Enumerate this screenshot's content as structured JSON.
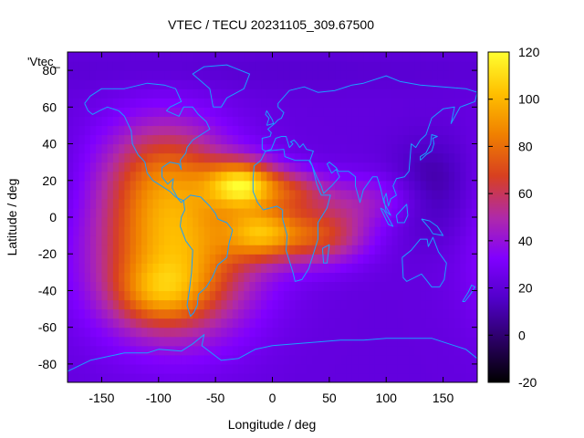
{
  "chart_data": {
    "type": "heatmap",
    "title": "VTEC / TECU 20231105_309.67500",
    "xlabel": "Longitude / deg",
    "ylabel": "Latitude / deg",
    "key_label": "'Vtec_",
    "xlim": [
      -180,
      180
    ],
    "ylim": [
      -90,
      90
    ],
    "xticks": [
      -150,
      -100,
      -50,
      0,
      50,
      100,
      150
    ],
    "yticks": [
      -80,
      -60,
      -40,
      -20,
      0,
      20,
      40,
      60,
      80
    ],
    "colorbar": {
      "min": -20,
      "max": 120,
      "ticks": [
        -20,
        0,
        20,
        40,
        60,
        80,
        100,
        120
      ],
      "palette": [
        "#000000",
        "#2a0062",
        "#5000c8",
        "#8000ff",
        "#b02aa8",
        "#d84020",
        "#f08000",
        "#ffc000",
        "#ffff30"
      ]
    },
    "grid_step_deg": 5,
    "field": {
      "background_tecu": 22,
      "features": [
        {
          "lon": -85,
          "lat": -20,
          "amplitude_tecu": 72,
          "sigma_lon": 48,
          "sigma_lat": 30
        },
        {
          "lon": -95,
          "lat": 25,
          "amplitude_tecu": 40,
          "sigma_lon": 38,
          "sigma_lat": 22
        },
        {
          "lon": -100,
          "lat": -42,
          "amplitude_tecu": 28,
          "sigma_lon": 28,
          "sigma_lat": 12
        },
        {
          "lon": -25,
          "lat": 18,
          "amplitude_tecu": 72,
          "sigma_lon": 22,
          "sigma_lat": 9
        },
        {
          "lon": -10,
          "lat": -8,
          "amplitude_tecu": 50,
          "sigma_lon": 22,
          "sigma_lat": 10
        },
        {
          "lon": 40,
          "lat": -10,
          "amplitude_tecu": 45,
          "sigma_lon": 30,
          "sigma_lat": 11
        },
        {
          "lon": 20,
          "lat": 15,
          "amplitude_tecu": 26,
          "sigma_lon": 20,
          "sigma_lat": 8
        },
        {
          "lon": 80,
          "lat": 10,
          "amplitude_tecu": 20,
          "sigma_lon": 40,
          "sigma_lat": 10
        },
        {
          "lon": 140,
          "lat": 15,
          "amplitude_tecu": -16,
          "sigma_lon": 25,
          "sigma_lat": 18
        },
        {
          "lon": 0,
          "lat": 80,
          "amplitude_tecu": -4,
          "sigma_lon": 200,
          "sigma_lat": 8
        }
      ]
    },
    "coastlines": [
      {
        "name": "North America",
        "points": [
          [
            -165,
            62
          ],
          [
            -160,
            66
          ],
          [
            -150,
            70
          ],
          [
            -130,
            70
          ],
          [
            -110,
            73
          ],
          [
            -95,
            72
          ],
          [
            -85,
            70
          ],
          [
            -80,
            63
          ],
          [
            -90,
            60
          ],
          [
            -93,
            58
          ],
          [
            -82,
            55
          ],
          [
            -78,
            60
          ],
          [
            -70,
            60
          ],
          [
            -65,
            56
          ],
          [
            -58,
            52
          ],
          [
            -55,
            48
          ],
          [
            -65,
            44
          ],
          [
            -70,
            42
          ],
          [
            -75,
            38
          ],
          [
            -76,
            35
          ],
          [
            -81,
            31
          ],
          [
            -80,
            26
          ],
          [
            -82,
            29
          ],
          [
            -90,
            30
          ],
          [
            -97,
            27
          ],
          [
            -97,
            22
          ],
          [
            -92,
            18
          ],
          [
            -87,
            21
          ],
          [
            -88,
            16
          ],
          [
            -83,
            10
          ],
          [
            -80,
            8
          ],
          [
            -78,
            9
          ],
          [
            -85,
            11
          ],
          [
            -90,
            14
          ],
          [
            -95,
            16
          ],
          [
            -105,
            20
          ],
          [
            -110,
            24
          ],
          [
            -112,
            30
          ],
          [
            -115,
            32
          ],
          [
            -118,
            34
          ],
          [
            -123,
            40
          ],
          [
            -124,
            47
          ],
          [
            -130,
            55
          ],
          [
            -135,
            58
          ],
          [
            -145,
            60
          ],
          [
            -152,
            58
          ],
          [
            -158,
            56
          ],
          [
            -162,
            58
          ],
          [
            -165,
            62
          ]
        ]
      },
      {
        "name": "South America",
        "points": [
          [
            -78,
            9
          ],
          [
            -72,
            12
          ],
          [
            -63,
            11
          ],
          [
            -55,
            6
          ],
          [
            -50,
            2
          ],
          [
            -48,
            -1
          ],
          [
            -40,
            -3
          ],
          [
            -35,
            -7
          ],
          [
            -38,
            -14
          ],
          [
            -40,
            -22
          ],
          [
            -48,
            -26
          ],
          [
            -53,
            -33
          ],
          [
            -58,
            -38
          ],
          [
            -65,
            -42
          ],
          [
            -66,
            -48
          ],
          [
            -69,
            -52
          ],
          [
            -72,
            -54
          ],
          [
            -75,
            -48
          ],
          [
            -73,
            -40
          ],
          [
            -71,
            -30
          ],
          [
            -70,
            -18
          ],
          [
            -76,
            -13
          ],
          [
            -81,
            -5
          ],
          [
            -80,
            0
          ],
          [
            -77,
            4
          ],
          [
            -78,
            9
          ]
        ]
      },
      {
        "name": "Greenland",
        "points": [
          [
            -52,
            60
          ],
          [
            -45,
            60
          ],
          [
            -40,
            65
          ],
          [
            -25,
            70
          ],
          [
            -20,
            78
          ],
          [
            -40,
            83
          ],
          [
            -60,
            82
          ],
          [
            -70,
            78
          ],
          [
            -55,
            70
          ],
          [
            -52,
            60
          ]
        ]
      },
      {
        "name": "Africa",
        "points": [
          [
            -17,
            21
          ],
          [
            -16,
            28
          ],
          [
            -10,
            31
          ],
          [
            -6,
            36
          ],
          [
            10,
            37
          ],
          [
            11,
            33
          ],
          [
            20,
            31
          ],
          [
            32,
            31
          ],
          [
            35,
            28
          ],
          [
            39,
            18
          ],
          [
            43,
            12
          ],
          [
            51,
            12
          ],
          [
            48,
            5
          ],
          [
            40,
            -3
          ],
          [
            40,
            -12
          ],
          [
            35,
            -22
          ],
          [
            32,
            -28
          ],
          [
            26,
            -34
          ],
          [
            20,
            -35
          ],
          [
            18,
            -30
          ],
          [
            12,
            -18
          ],
          [
            13,
            -10
          ],
          [
            9,
            -1
          ],
          [
            9,
            4
          ],
          [
            4,
            6
          ],
          [
            -8,
            4
          ],
          [
            -13,
            8
          ],
          [
            -17,
            14
          ],
          [
            -17,
            21
          ]
        ]
      },
      {
        "name": "Madagascar",
        "points": [
          [
            44,
            -17
          ],
          [
            50,
            -15
          ],
          [
            48,
            -25
          ],
          [
            45,
            -25
          ],
          [
            44,
            -17
          ]
        ]
      },
      {
        "name": "Eurasia",
        "points": [
          [
            -9,
            37
          ],
          [
            -9,
            43
          ],
          [
            -2,
            44
          ],
          [
            -1,
            46
          ],
          [
            -4,
            48
          ],
          [
            2,
            51
          ],
          [
            5,
            53
          ],
          [
            8,
            54
          ],
          [
            10,
            57
          ],
          [
            5,
            60
          ],
          [
            5,
            62
          ],
          [
            15,
            69
          ],
          [
            28,
            71
          ],
          [
            40,
            68
          ],
          [
            55,
            69
          ],
          [
            70,
            72
          ],
          [
            80,
            73
          ],
          [
            100,
            77
          ],
          [
            112,
            74
          ],
          [
            130,
            72
          ],
          [
            150,
            71
          ],
          [
            170,
            70
          ],
          [
            180,
            68
          ],
          [
            178,
            63
          ],
          [
            165,
            60
          ],
          [
            157,
            51
          ],
          [
            160,
            60
          ],
          [
            150,
            59
          ],
          [
            140,
            54
          ],
          [
            135,
            45
          ],
          [
            130,
            42
          ],
          [
            126,
            38
          ],
          [
            122,
            40
          ],
          [
            121,
            32
          ],
          [
            120,
            25
          ],
          [
            116,
            22
          ],
          [
            109,
            21
          ],
          [
            106,
            17
          ],
          [
            109,
            12
          ],
          [
            104,
            10
          ],
          [
            102,
            6
          ],
          [
            100,
            13
          ],
          [
            98,
            10
          ],
          [
            100,
            3
          ],
          [
            104,
            1
          ],
          [
            98,
            8
          ],
          [
            95,
            16
          ],
          [
            92,
            22
          ],
          [
            88,
            22
          ],
          [
            80,
            15
          ],
          [
            77,
            8
          ],
          [
            73,
            17
          ],
          [
            73,
            22
          ],
          [
            67,
            25
          ],
          [
            58,
            25
          ],
          [
            56,
            27
          ],
          [
            50,
            30
          ],
          [
            48,
            29
          ],
          [
            52,
            24
          ],
          [
            56,
            26
          ],
          [
            59,
            22
          ],
          [
            52,
            17
          ],
          [
            45,
            13
          ],
          [
            43,
            17
          ],
          [
            39,
            22
          ],
          [
            35,
            28
          ],
          [
            33,
            31
          ],
          [
            36,
            36
          ],
          [
            30,
            37
          ],
          [
            27,
            40
          ],
          [
            24,
            38
          ],
          [
            22,
            40
          ],
          [
            19,
            42
          ],
          [
            16,
            41
          ],
          [
            18,
            40
          ],
          [
            15,
            38
          ],
          [
            12,
            44
          ],
          [
            10,
            44
          ],
          [
            8,
            44
          ],
          [
            3,
            43
          ],
          [
            -1,
            37
          ],
          [
            -6,
            36
          ],
          [
            -9,
            37
          ]
        ]
      },
      {
        "name": "Great Britain",
        "points": [
          [
            -5,
            50
          ],
          [
            1,
            51
          ],
          [
            0,
            53
          ],
          [
            -3,
            56
          ],
          [
            -5,
            58
          ],
          [
            -6,
            56
          ],
          [
            -3,
            54
          ],
          [
            -5,
            50
          ]
        ]
      },
      {
        "name": "Japan",
        "points": [
          [
            130,
            31
          ],
          [
            135,
            34
          ],
          [
            140,
            36
          ],
          [
            142,
            40
          ],
          [
            141,
            43
          ],
          [
            145,
            44
          ],
          [
            140,
            45
          ],
          [
            139,
            40
          ],
          [
            135,
            35
          ],
          [
            130,
            33
          ],
          [
            130,
            31
          ]
        ]
      },
      {
        "name": "Australia",
        "points": [
          [
            114,
            -22
          ],
          [
            122,
            -18
          ],
          [
            130,
            -12
          ],
          [
            136,
            -12
          ],
          [
            137,
            -16
          ],
          [
            141,
            -11
          ],
          [
            146,
            -19
          ],
          [
            153,
            -25
          ],
          [
            151,
            -34
          ],
          [
            147,
            -38
          ],
          [
            140,
            -38
          ],
          [
            135,
            -34
          ],
          [
            131,
            -31
          ],
          [
            118,
            -35
          ],
          [
            115,
            -33
          ],
          [
            114,
            -22
          ]
        ]
      },
      {
        "name": "New Zealand",
        "points": [
          [
            167,
            -46
          ],
          [
            172,
            -41
          ],
          [
            175,
            -37
          ],
          [
            178,
            -38
          ],
          [
            174,
            -42
          ],
          [
            169,
            -46
          ],
          [
            167,
            -46
          ]
        ]
      },
      {
        "name": "Borneo",
        "points": [
          [
            109,
            1
          ],
          [
            115,
            5
          ],
          [
            118,
            7
          ],
          [
            119,
            1
          ],
          [
            116,
            -3
          ],
          [
            110,
            -3
          ],
          [
            109,
            1
          ]
        ]
      },
      {
        "name": "Sumatra",
        "points": [
          [
            95,
            5
          ],
          [
            98,
            4
          ],
          [
            106,
            -5
          ],
          [
            102,
            -4
          ],
          [
            95,
            5
          ]
        ]
      },
      {
        "name": "New Guinea",
        "points": [
          [
            131,
            -1
          ],
          [
            138,
            -2
          ],
          [
            145,
            -5
          ],
          [
            150,
            -10
          ],
          [
            141,
            -9
          ],
          [
            138,
            -6
          ],
          [
            131,
            -1
          ]
        ]
      },
      {
        "name": "Antarctica",
        "points": [
          [
            -180,
            -84
          ],
          [
            -160,
            -78
          ],
          [
            -145,
            -76
          ],
          [
            -130,
            -74
          ],
          [
            -110,
            -74
          ],
          [
            -100,
            -72
          ],
          [
            -80,
            -73
          ],
          [
            -70,
            -69
          ],
          [
            -60,
            -64
          ],
          [
            -62,
            -70
          ],
          [
            -45,
            -78
          ],
          [
            -30,
            -77
          ],
          [
            -15,
            -72
          ],
          [
            0,
            -70
          ],
          [
            20,
            -69
          ],
          [
            40,
            -68
          ],
          [
            60,
            -67
          ],
          [
            80,
            -67
          ],
          [
            100,
            -66
          ],
          [
            120,
            -66
          ],
          [
            140,
            -66
          ],
          [
            160,
            -70
          ],
          [
            170,
            -72
          ],
          [
            180,
            -77
          ]
        ]
      }
    ]
  }
}
